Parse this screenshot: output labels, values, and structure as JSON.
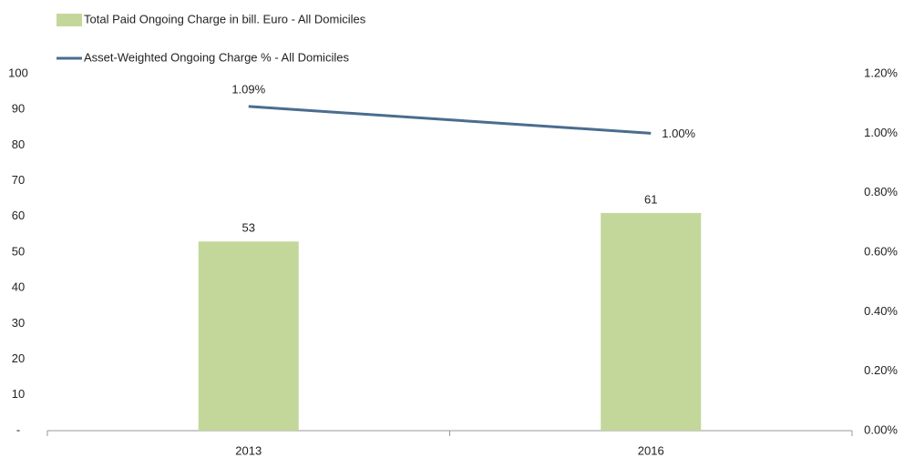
{
  "chart_data": {
    "type": "combo",
    "categories": [
      "2013",
      "2016"
    ],
    "series": [
      {
        "name": "Total Paid Ongoing Charge in bill. Euro - All Domiciles",
        "type": "bar",
        "color": "#c4d79b",
        "values": [
          53,
          61
        ]
      },
      {
        "name": "Asset-Weighted Ongoing Charge % - All Domiciles",
        "type": "line",
        "axis": "y2",
        "color": "#4a6d8f",
        "values": [
          1.09,
          1.0
        ],
        "value_labels": [
          "1.09%",
          "1.00%"
        ]
      }
    ],
    "ylim": [
      0,
      100
    ],
    "yticks": [
      {
        "value": 0,
        "label": "-"
      },
      10,
      20,
      30,
      40,
      50,
      60,
      70,
      80,
      90,
      100
    ],
    "y2lim": [
      0,
      1.2
    ],
    "y2ticks": [
      {
        "value": 0,
        "label": "0.00%"
      },
      {
        "value": 0.2,
        "label": "0.20%"
      },
      {
        "value": 0.4,
        "label": "0.40%"
      },
      {
        "value": 0.6,
        "label": "0.60%"
      },
      {
        "value": 0.8,
        "label": "0.80%"
      },
      {
        "value": 1.0,
        "label": "1.00%"
      },
      {
        "value": 1.2,
        "label": "1.20%"
      }
    ],
    "grid": false,
    "legend": "top-left"
  }
}
